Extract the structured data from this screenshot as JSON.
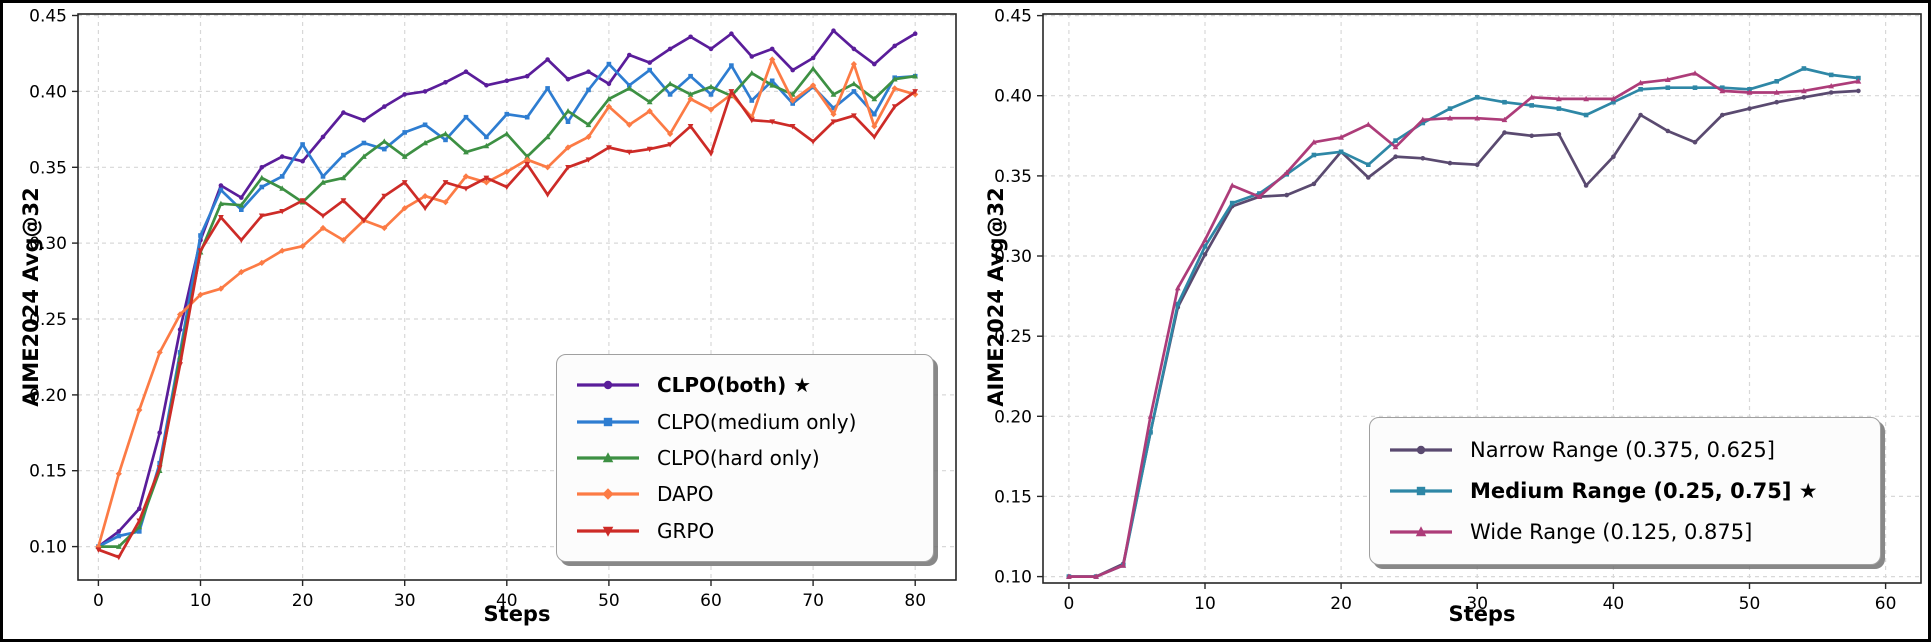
{
  "figure": {
    "background": "#ffffff",
    "border_color": "#000000",
    "grid_color": "#d8d8d8",
    "spine_color": "#262626",
    "text_color": "#000000",
    "legend_background": "#fcfcfc",
    "legend_border": "#a0a0a0"
  },
  "chart_data": [
    {
      "type": "line",
      "title": "",
      "xlabel": "Steps",
      "ylabel": "AIME2024 Avg@32",
      "xlim": [
        -2.0,
        84.0
      ],
      "ylim": [
        0.078,
        0.451
      ],
      "xticks": [
        0,
        10,
        20,
        30,
        40,
        50,
        60,
        70,
        80
      ],
      "yticks": [
        0.1,
        0.15,
        0.2,
        0.25,
        0.3,
        0.35,
        0.4,
        0.45
      ],
      "grid": true,
      "legend_position": "lower right inside",
      "x": [
        0,
        2,
        4,
        6,
        8,
        10,
        12,
        14,
        16,
        18,
        20,
        22,
        24,
        26,
        28,
        30,
        32,
        34,
        36,
        38,
        40,
        42,
        44,
        46,
        48,
        50,
        52,
        54,
        56,
        58,
        60,
        62,
        64,
        66,
        68,
        70,
        72,
        74,
        76,
        78,
        80
      ],
      "series": [
        {
          "name": "CLPO(both) ★",
          "bold": true,
          "color": "#5a1d9a",
          "marker": "circle",
          "values": [
            0.1,
            0.11,
            0.125,
            0.175,
            0.243,
            0.302,
            0.338,
            0.33,
            0.35,
            0.357,
            0.354,
            0.37,
            0.386,
            0.381,
            0.39,
            0.398,
            0.4,
            0.406,
            0.413,
            0.404,
            0.407,
            0.41,
            0.421,
            0.408,
            0.413,
            0.405,
            0.424,
            0.419,
            0.428,
            0.436,
            0.428,
            0.438,
            0.423,
            0.428,
            0.414,
            0.422,
            0.44,
            0.428,
            0.418,
            0.43,
            0.438
          ]
        },
        {
          "name": "CLPO(medium only)",
          "bold": false,
          "color": "#2e7dd1",
          "marker": "square",
          "values": [
            0.1,
            0.107,
            0.11,
            0.155,
            0.228,
            0.305,
            0.335,
            0.322,
            0.337,
            0.344,
            0.365,
            0.344,
            0.358,
            0.366,
            0.362,
            0.373,
            0.378,
            0.368,
            0.383,
            0.37,
            0.385,
            0.383,
            0.402,
            0.38,
            0.401,
            0.418,
            0.404,
            0.414,
            0.398,
            0.41,
            0.398,
            0.417,
            0.394,
            0.407,
            0.392,
            0.403,
            0.389,
            0.4,
            0.385,
            0.409,
            0.41
          ]
        },
        {
          "name": "CLPO(hard only)",
          "bold": false,
          "color": "#3d9043",
          "marker": "triangle-up",
          "values": [
            0.1,
            0.1,
            0.113,
            0.15,
            0.225,
            0.294,
            0.326,
            0.325,
            0.343,
            0.336,
            0.327,
            0.34,
            0.343,
            0.357,
            0.367,
            0.357,
            0.366,
            0.372,
            0.36,
            0.364,
            0.372,
            0.357,
            0.37,
            0.387,
            0.378,
            0.395,
            0.402,
            0.393,
            0.405,
            0.398,
            0.403,
            0.397,
            0.412,
            0.404,
            0.398,
            0.415,
            0.398,
            0.405,
            0.395,
            0.408,
            0.41
          ]
        },
        {
          "name": "DAPO",
          "bold": false,
          "color": "#fc7b45",
          "marker": "diamond",
          "values": [
            0.1,
            0.148,
            0.19,
            0.228,
            0.253,
            0.266,
            0.27,
            0.281,
            0.287,
            0.295,
            0.298,
            0.31,
            0.302,
            0.315,
            0.31,
            0.323,
            0.331,
            0.327,
            0.344,
            0.34,
            0.347,
            0.355,
            0.35,
            0.363,
            0.37,
            0.39,
            0.378,
            0.387,
            0.372,
            0.395,
            0.388,
            0.398,
            0.383,
            0.421,
            0.394,
            0.404,
            0.385,
            0.418,
            0.377,
            0.402,
            0.398
          ]
        },
        {
          "name": "GRPO",
          "bold": false,
          "color": "#cd2b27",
          "marker": "triangle-down",
          "values": [
            0.098,
            0.093,
            0.117,
            0.152,
            0.22,
            0.295,
            0.317,
            0.302,
            0.318,
            0.321,
            0.328,
            0.318,
            0.328,
            0.315,
            0.331,
            0.34,
            0.323,
            0.34,
            0.336,
            0.343,
            0.337,
            0.352,
            0.332,
            0.35,
            0.355,
            0.363,
            0.36,
            0.362,
            0.365,
            0.377,
            0.359,
            0.4,
            0.381,
            0.38,
            0.377,
            0.367,
            0.38,
            0.384,
            0.37,
            0.39,
            0.4
          ]
        }
      ]
    },
    {
      "type": "line",
      "title": "",
      "xlabel": "Steps",
      "ylabel": "AIME2024 Avg@32",
      "xlim": [
        -1.9,
        62.6
      ],
      "ylim": [
        0.096,
        0.451
      ],
      "xticks": [
        0,
        10,
        20,
        30,
        40,
        50,
        60
      ],
      "yticks": [
        0.1,
        0.15,
        0.2,
        0.25,
        0.3,
        0.35,
        0.4,
        0.45
      ],
      "grid": true,
      "legend_position": "lower right inside",
      "x": [
        0,
        2,
        4,
        6,
        8,
        10,
        12,
        14,
        16,
        18,
        20,
        22,
        24,
        26,
        28,
        30,
        32,
        34,
        36,
        38,
        40,
        42,
        44,
        46,
        48,
        50,
        52,
        54,
        56,
        58
      ],
      "series": [
        {
          "name": "Narrow Range (0.375, 0.625]",
          "bold": false,
          "color": "#5a4a70",
          "marker": "circle",
          "values": [
            0.1,
            0.1,
            0.108,
            0.19,
            0.268,
            0.301,
            0.331,
            0.337,
            0.338,
            0.345,
            0.365,
            0.349,
            0.362,
            0.361,
            0.358,
            0.357,
            0.377,
            0.375,
            0.376,
            0.344,
            0.362,
            0.388,
            0.378,
            0.371,
            0.388,
            0.392,
            0.396,
            0.399,
            0.402,
            0.403
          ]
        },
        {
          "name": "Medium Range (0.25, 0.75] ★",
          "bold": true,
          "color": "#2e87a6",
          "marker": "square",
          "values": [
            0.1,
            0.1,
            0.107,
            0.19,
            0.27,
            0.306,
            0.333,
            0.339,
            0.351,
            0.363,
            0.365,
            0.357,
            0.372,
            0.383,
            0.392,
            0.399,
            0.396,
            0.394,
            0.392,
            0.388,
            0.396,
            0.404,
            0.405,
            0.405,
            0.405,
            0.404,
            0.409,
            0.417,
            0.413,
            0.411
          ]
        },
        {
          "name": "Wide Range (0.125, 0.875]",
          "bold": false,
          "color": "#ad3c79",
          "marker": "triangle-up",
          "values": [
            0.1,
            0.1,
            0.107,
            0.2,
            0.28,
            0.31,
            0.344,
            0.337,
            0.352,
            0.371,
            0.374,
            0.382,
            0.368,
            0.385,
            0.386,
            0.386,
            0.385,
            0.399,
            0.398,
            0.398,
            0.398,
            0.408,
            0.41,
            0.414,
            0.403,
            0.402,
            0.402,
            0.403,
            0.406,
            0.409
          ]
        }
      ]
    }
  ]
}
